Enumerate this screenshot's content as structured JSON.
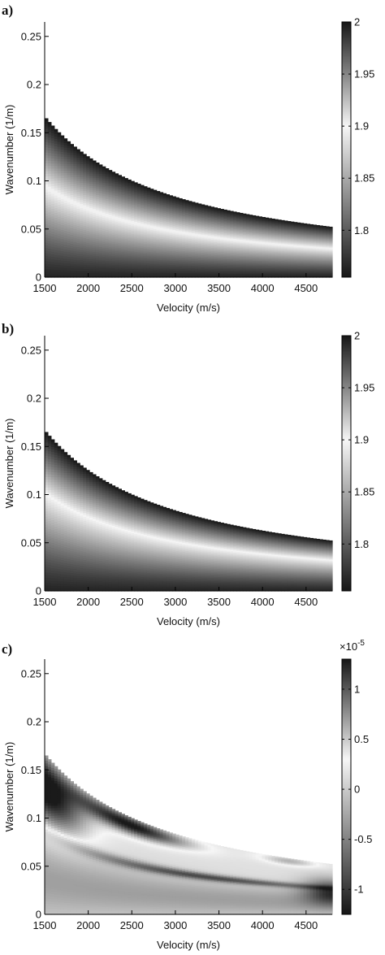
{
  "chart_data": [
    {
      "type": "heatmap",
      "panel_label": "a)",
      "xlabel": "Velocity (m/s)",
      "ylabel": "Wavenumber (1/m)",
      "xlim": [
        1500,
        4800
      ],
      "ylim": [
        0,
        0.265
      ],
      "xticks": [
        "1500",
        "2000",
        "2500",
        "3000",
        "3500",
        "4000",
        "4500"
      ],
      "yticks": [
        "0",
        "0.05",
        "0.1",
        "0.15",
        "0.2",
        "0.25"
      ],
      "boundary_k_at_1500": 0.167,
      "bright_band_k_at_1500": 0.095,
      "colorbar": {
        "min": 1.755,
        "max": 2.0,
        "ticks": [
          "1.8",
          "1.85",
          "1.9",
          "1.95",
          "2"
        ],
        "peak_brightness_value": 1.9,
        "exponent": ""
      },
      "colormap": "gray-diverging"
    },
    {
      "type": "heatmap",
      "panel_label": "b)",
      "xlabel": "Velocity (m/s)",
      "ylabel": "Wavenumber (1/m)",
      "xlim": [
        1500,
        4800
      ],
      "ylim": [
        0,
        0.265
      ],
      "xticks": [
        "1500",
        "2000",
        "2500",
        "3000",
        "3500",
        "4000",
        "4500"
      ],
      "yticks": [
        "0",
        "0.05",
        "0.1",
        "0.15",
        "0.2",
        "0.25"
      ],
      "boundary_k_at_1500": 0.167,
      "bright_band_k_at_1500": 0.102,
      "colorbar": {
        "min": 1.755,
        "max": 2.0,
        "ticks": [
          "1.8",
          "1.85",
          "1.9",
          "1.95",
          "2"
        ],
        "peak_brightness_value": 1.9,
        "exponent": ""
      },
      "colormap": "gray-diverging"
    },
    {
      "type": "heatmap",
      "panel_label": "c)",
      "xlabel": "Velocity (m/s)",
      "ylabel": "Wavenumber (1/m)",
      "xlim": [
        1500,
        4800
      ],
      "ylim": [
        0,
        0.265
      ],
      "xticks": [
        "1500",
        "2000",
        "2500",
        "3000",
        "3500",
        "4000",
        "4500"
      ],
      "yticks": [
        "0",
        "0.05",
        "0.1",
        "0.15",
        "0.2",
        "0.25"
      ],
      "boundary_k_at_1500": 0.167,
      "colorbar": {
        "min": -1.25,
        "max": 1.3,
        "ticks": [
          "-1",
          "-0.5",
          "0",
          "0.5",
          "1"
        ],
        "peak_brightness_value": 0.3,
        "exponent": "×10",
        "exponent_power": "-5"
      },
      "colormap": "gray-diverging"
    }
  ]
}
